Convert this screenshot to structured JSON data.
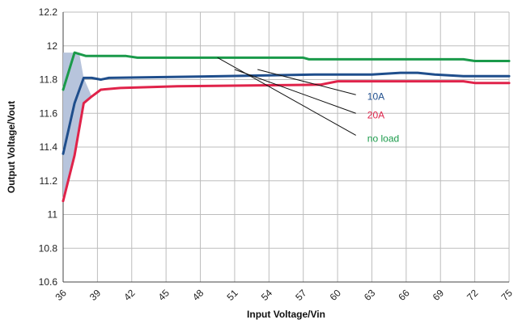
{
  "chart_data": {
    "type": "line",
    "xlabel": "Input Voltage/Vin",
    "ylabel": "Output Voltage/Vout",
    "xlim": [
      36,
      75
    ],
    "ylim": [
      10.6,
      12.2
    ],
    "x_ticks": [
      "36",
      "39",
      "42",
      "45",
      "48",
      "51",
      "54",
      "57",
      "60",
      "63",
      "66",
      "69",
      "72",
      "75"
    ],
    "y_ticks": [
      "10.6",
      "10.8",
      "11",
      "11.2",
      "11.4",
      "11.6",
      "11.8",
      "12",
      "12.2"
    ],
    "grid": true,
    "series": [
      {
        "name": "10A",
        "color": "#1f4e8c",
        "x": [
          36,
          37,
          37.8,
          38.5,
          39.3,
          40,
          50,
          58,
          63,
          65.5,
          67,
          68.5,
          71,
          75
        ],
        "y": [
          11.36,
          11.66,
          11.81,
          11.81,
          11.8,
          11.81,
          11.82,
          11.83,
          11.83,
          11.84,
          11.84,
          11.83,
          11.82,
          11.82
        ]
      },
      {
        "name": "20A",
        "color": "#e0234a",
        "x": [
          36,
          37,
          37.8,
          38.5,
          39.3,
          41,
          46,
          58.5,
          60,
          71,
          72,
          75
        ],
        "y": [
          11.08,
          11.35,
          11.66,
          11.7,
          11.74,
          11.75,
          11.76,
          11.77,
          11.79,
          11.79,
          11.78,
          11.78
        ]
      },
      {
        "name": "no load",
        "color": "#1a9a4a",
        "x": [
          36,
          37,
          38,
          41.5,
          42.5,
          57,
          57.5,
          71,
          72,
          75
        ],
        "y": [
          11.74,
          11.96,
          11.94,
          11.94,
          11.93,
          11.93,
          11.92,
          11.92,
          11.91,
          11.91
        ]
      }
    ],
    "shaded_region": {
      "color": "#b7c4dc",
      "x": [
        36,
        37,
        37.4,
        37.8,
        38.5,
        37.8,
        37,
        36
      ],
      "y": [
        11.96,
        11.96,
        11.96,
        11.81,
        11.7,
        11.66,
        11.35,
        11.08
      ]
    },
    "annotations": [
      {
        "label": "10A",
        "color": "#1f4e8c",
        "x": 62.6,
        "y": 11.7,
        "from": [
          61.6,
          11.71
        ],
        "to": [
          53,
          11.86
        ]
      },
      {
        "label": "20A",
        "color": "#e0234a",
        "x": 62.6,
        "y": 11.59,
        "from": [
          61.6,
          11.6
        ],
        "to": [
          51,
          11.86
        ]
      },
      {
        "label": "no load",
        "color": "#1a9a4a",
        "x": 62.6,
        "y": 11.45,
        "from": [
          61.6,
          11.47
        ],
        "to": [
          49.5,
          11.93
        ]
      }
    ]
  }
}
